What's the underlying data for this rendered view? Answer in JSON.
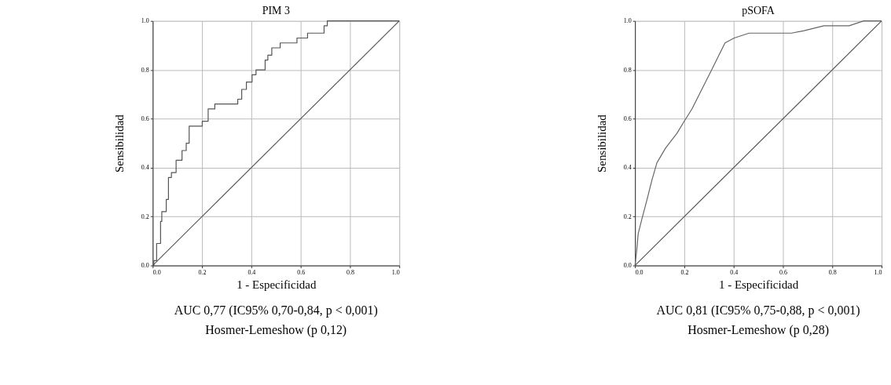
{
  "chart_data": [
    {
      "type": "line",
      "title": "PIM 3",
      "xlabel": "1 - Especificidad",
      "ylabel": "Sensibilidad",
      "xlim": [
        0,
        1
      ],
      "ylim": [
        0,
        1
      ],
      "xticks": [
        {
          "value": 0,
          "label": "0.0"
        },
        {
          "value": 0.2,
          "label": "0.2"
        },
        {
          "value": 0.4,
          "label": "0.4"
        },
        {
          "value": 0.6,
          "label": "0.6"
        },
        {
          "value": 0.8,
          "label": "0.8"
        },
        {
          "value": 1,
          "label": "1.0"
        }
      ],
      "yticks": [
        {
          "value": 0,
          "label": "0.0"
        },
        {
          "value": 0.2,
          "label": "0.2"
        },
        {
          "value": 0.4,
          "label": "0.4"
        },
        {
          "value": 0.6,
          "label": "0.6"
        },
        {
          "value": 0.8,
          "label": "0.8"
        },
        {
          "value": 1,
          "label": "1.0"
        }
      ],
      "grid": true,
      "marker": "none",
      "line_style": "solid",
      "series": [
        {
          "type": "step",
          "color": "#555555",
          "x": [
            0,
            0.005,
            0.016,
            0.032,
            0.037,
            0.055,
            0.064,
            0.076,
            0.095,
            0.119,
            0.136,
            0.148,
            0.201,
            0.225,
            0.252,
            0.345,
            0.361,
            0.38,
            0.403,
            0.419,
            0.456,
            0.467,
            0.483,
            0.517,
            0.585,
            0.628,
            0.695,
            0.708,
            1.0
          ],
          "values": [
            0,
            0.02,
            0.09,
            0.18,
            0.22,
            0.27,
            0.36,
            0.38,
            0.43,
            0.47,
            0.5,
            0.57,
            0.59,
            0.64,
            0.66,
            0.68,
            0.72,
            0.75,
            0.78,
            0.8,
            0.84,
            0.86,
            0.89,
            0.91,
            0.93,
            0.95,
            0.98,
            1.0,
            1.0
          ]
        },
        {
          "type": "line",
          "color": "#555555",
          "x": [
            0,
            1
          ],
          "values": [
            0,
            1
          ]
        }
      ],
      "annotations": [
        "AUC 0,77 (IC95% 0,70-0,84, p < 0,001)",
        "Hosmer-Lemeshow (p 0,12)"
      ]
    },
    {
      "type": "line",
      "title": "pSOFA",
      "xlabel": "1 - Especificidad",
      "ylabel": "Sensibilidad",
      "xlim": [
        0,
        1
      ],
      "ylim": [
        0,
        1
      ],
      "xticks": [
        {
          "value": 0,
          "label": "0.0"
        },
        {
          "value": 0.2,
          "label": "0.2"
        },
        {
          "value": 0.4,
          "label": "0.4"
        },
        {
          "value": 0.6,
          "label": "0.6"
        },
        {
          "value": 0.8,
          "label": "0.8"
        },
        {
          "value": 1,
          "label": "1.0"
        }
      ],
      "yticks": [
        {
          "value": 0,
          "label": "0.0"
        },
        {
          "value": 0.2,
          "label": "0.2"
        },
        {
          "value": 0.4,
          "label": "0.4"
        },
        {
          "value": 0.6,
          "label": "0.6"
        },
        {
          "value": 0.8,
          "label": "0.8"
        },
        {
          "value": 1,
          "label": "1.0"
        }
      ],
      "grid": true,
      "marker": "none",
      "line_style": "solid",
      "series": [
        {
          "type": "line",
          "color": "#666666",
          "x": [
            0,
            0.008,
            0.013,
            0.028,
            0.049,
            0.069,
            0.089,
            0.124,
            0.17,
            0.2,
            0.231,
            0.271,
            0.311,
            0.365,
            0.402,
            0.463,
            0.514,
            0.635,
            0.686,
            0.766,
            0.868,
            0.928,
            1.0
          ],
          "values": [
            0,
            0.07,
            0.13,
            0.19,
            0.27,
            0.35,
            0.42,
            0.48,
            0.54,
            0.59,
            0.64,
            0.72,
            0.8,
            0.91,
            0.93,
            0.95,
            0.95,
            0.95,
            0.96,
            0.98,
            0.98,
            1.0,
            1.0
          ]
        },
        {
          "type": "line",
          "color": "#555555",
          "x": [
            0,
            1
          ],
          "values": [
            0,
            1
          ]
        }
      ],
      "annotations": [
        "AUC 0,81 (IC95% 0,75-0,88, p < 0,001)",
        "Hosmer-Lemeshow (p 0,28)"
      ]
    }
  ]
}
